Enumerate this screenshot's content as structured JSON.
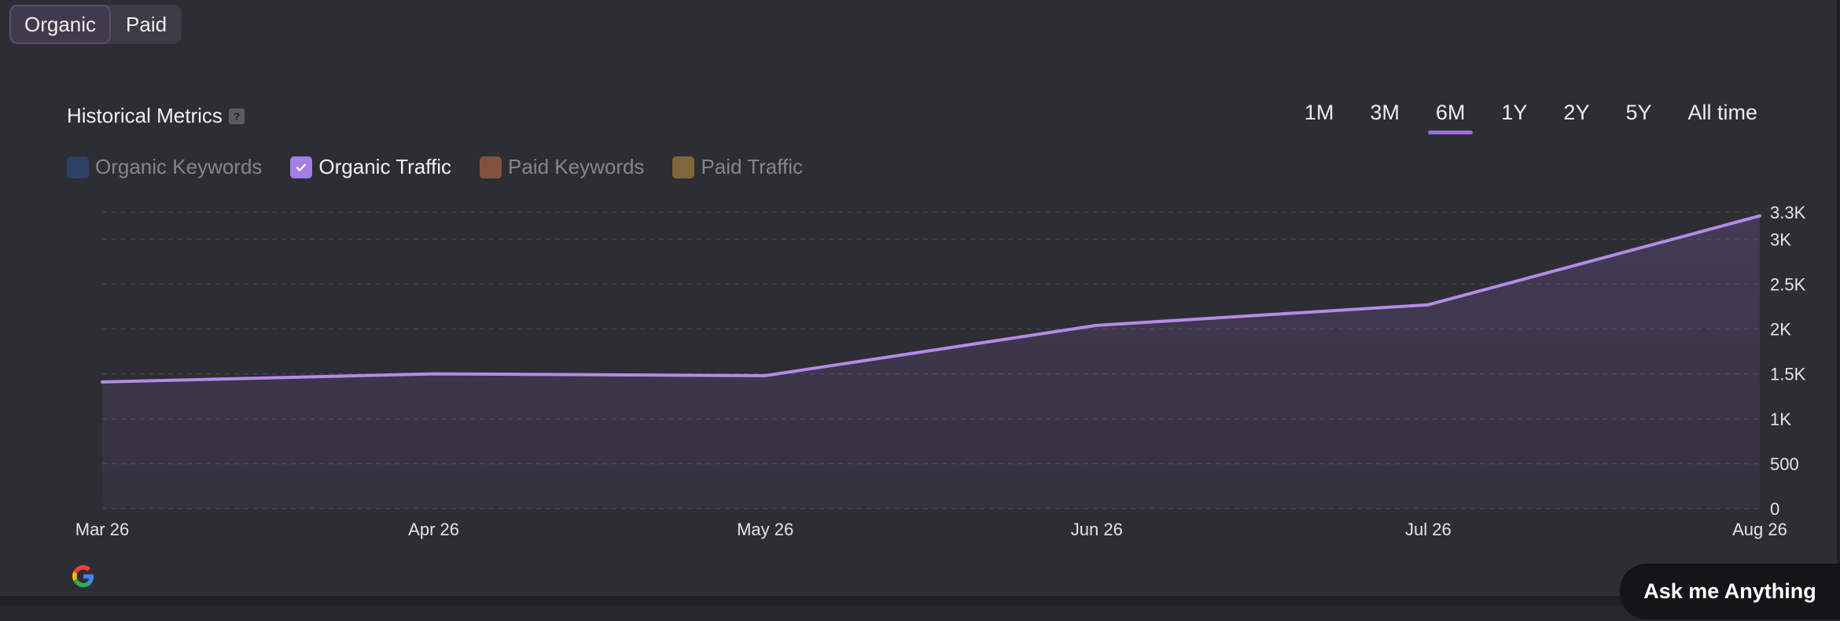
{
  "tabs": [
    {
      "label": "Organic",
      "active": true
    },
    {
      "label": "Paid",
      "active": false
    }
  ],
  "metrics": {
    "title": "Historical Metrics",
    "help_icon": "?",
    "ranges": [
      {
        "label": "1M",
        "active": false
      },
      {
        "label": "3M",
        "active": false
      },
      {
        "label": "6M",
        "active": true
      },
      {
        "label": "1Y",
        "active": false
      },
      {
        "label": "2Y",
        "active": false
      },
      {
        "label": "5Y",
        "active": false
      },
      {
        "label": "All time",
        "active": false
      }
    ],
    "legend": [
      {
        "label": "Organic Keywords",
        "checked": false,
        "color": "#2e4064"
      },
      {
        "label": "Organic Traffic",
        "checked": true,
        "color": "#a57de6"
      },
      {
        "label": "Paid Keywords",
        "checked": false,
        "color": "#80523c"
      },
      {
        "label": "Paid Traffic",
        "checked": false,
        "color": "#80663c"
      }
    ]
  },
  "chart_data": {
    "type": "area",
    "x": [
      "Mar 26",
      "Apr 26",
      "May 26",
      "Jun 26",
      "Jul 26",
      "Aug 26"
    ],
    "series": [
      {
        "name": "Organic Traffic",
        "values": [
          1410,
          1500,
          1480,
          2040,
          2270,
          3260
        ],
        "color": "#b48ae8"
      }
    ],
    "yticks": [
      0,
      500,
      1000,
      1500,
      2000,
      2500,
      3000,
      3300
    ],
    "yticklabels": [
      "0",
      "500",
      "1K",
      "1.5K",
      "2K",
      "2.5K",
      "3K",
      "3.3K"
    ],
    "ylim": [
      0,
      3300
    ],
    "grid": true,
    "y_axis_side": "right"
  },
  "assistant": {
    "label": "Ask me Anything"
  }
}
